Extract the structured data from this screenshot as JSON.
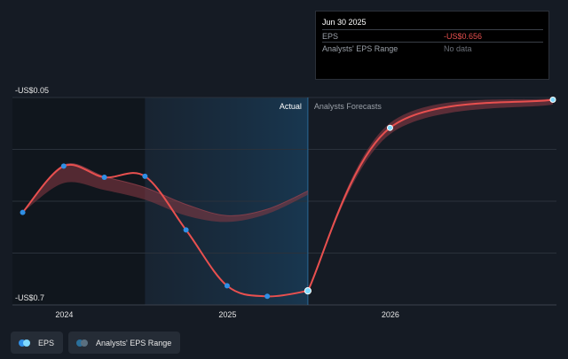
{
  "chart_data": {
    "type": "line",
    "y_tick_labels": [
      "-US$0.05",
      "-US$0.7"
    ],
    "ylim": [
      -0.7,
      -0.05
    ],
    "x_tick_labels": [
      "2024",
      "2025",
      "2026"
    ],
    "x_tick_dates": [
      "2024-01-01",
      "2025-01-01",
      "2026-01-01"
    ],
    "xlim": [
      "2023-09-07",
      "2027-01-08"
    ],
    "divider_date": "2025-06-30",
    "actual_label": "Actual",
    "forecast_label": "Analysts Forecasts",
    "eps_series": {
      "name": "EPS",
      "color": "#e8504f",
      "actual": [
        {
          "x": "2023-09-30",
          "y": -0.41
        },
        {
          "x": "2023-12-31",
          "y": -0.265
        },
        {
          "x": "2024-03-31",
          "y": -0.3
        },
        {
          "x": "2024-06-30",
          "y": -0.297
        },
        {
          "x": "2024-09-30",
          "y": -0.465
        },
        {
          "x": "2024-12-31",
          "y": -0.64
        },
        {
          "x": "2025-03-31",
          "y": -0.673
        },
        {
          "x": "2025-06-30",
          "y": -0.656
        }
      ],
      "forecast": [
        {
          "x": "2025-06-30",
          "y": -0.656
        },
        {
          "x": "2025-12-31",
          "y": -0.145
        },
        {
          "x": "2026-12-31",
          "y": -0.057
        }
      ]
    },
    "range_series": {
      "name": "Analysts' EPS Range",
      "color": "#e8504f",
      "upper": [
        {
          "x": "2023-09-30",
          "y": -0.41
        },
        {
          "x": "2023-12-31",
          "y": -0.262
        },
        {
          "x": "2024-03-31",
          "y": -0.298
        },
        {
          "x": "2024-06-30",
          "y": -0.332
        },
        {
          "x": "2024-09-30",
          "y": -0.385
        },
        {
          "x": "2024-12-31",
          "y": -0.42
        },
        {
          "x": "2025-03-31",
          "y": -0.4
        },
        {
          "x": "2025-06-30",
          "y": -0.343
        }
      ],
      "lower": [
        {
          "x": "2023-09-30",
          "y": -0.41
        },
        {
          "x": "2023-12-31",
          "y": -0.318
        },
        {
          "x": "2024-03-31",
          "y": -0.34
        },
        {
          "x": "2024-06-30",
          "y": -0.37
        },
        {
          "x": "2024-09-30",
          "y": -0.42
        },
        {
          "x": "2024-12-31",
          "y": -0.44
        },
        {
          "x": "2025-03-31",
          "y": -0.415
        },
        {
          "x": "2025-06-30",
          "y": -0.355
        }
      ],
      "forecast_upper": [
        {
          "x": "2025-06-30",
          "y": -0.656
        },
        {
          "x": "2025-12-31",
          "y": -0.13
        },
        {
          "x": "2026-12-31",
          "y": -0.052
        }
      ],
      "forecast_lower": [
        {
          "x": "2025-06-30",
          "y": -0.656
        },
        {
          "x": "2025-12-31",
          "y": -0.165
        },
        {
          "x": "2026-12-31",
          "y": -0.072
        }
      ]
    },
    "grid": true,
    "legend_position": "bottom-left"
  },
  "tooltip": {
    "date": "Jun 30 2025",
    "rows": [
      {
        "label": "EPS",
        "value": "-US$0.656"
      },
      {
        "label": "Analysts' EPS Range",
        "value": "No data"
      }
    ]
  },
  "legend": [
    {
      "label": "EPS",
      "color_a": "#2f8fe6",
      "color_b": "#7fd9ff"
    },
    {
      "label": "Analysts' EPS Range",
      "color_a": "#2a6f9a",
      "color_b": "#5a6f7f"
    }
  ]
}
